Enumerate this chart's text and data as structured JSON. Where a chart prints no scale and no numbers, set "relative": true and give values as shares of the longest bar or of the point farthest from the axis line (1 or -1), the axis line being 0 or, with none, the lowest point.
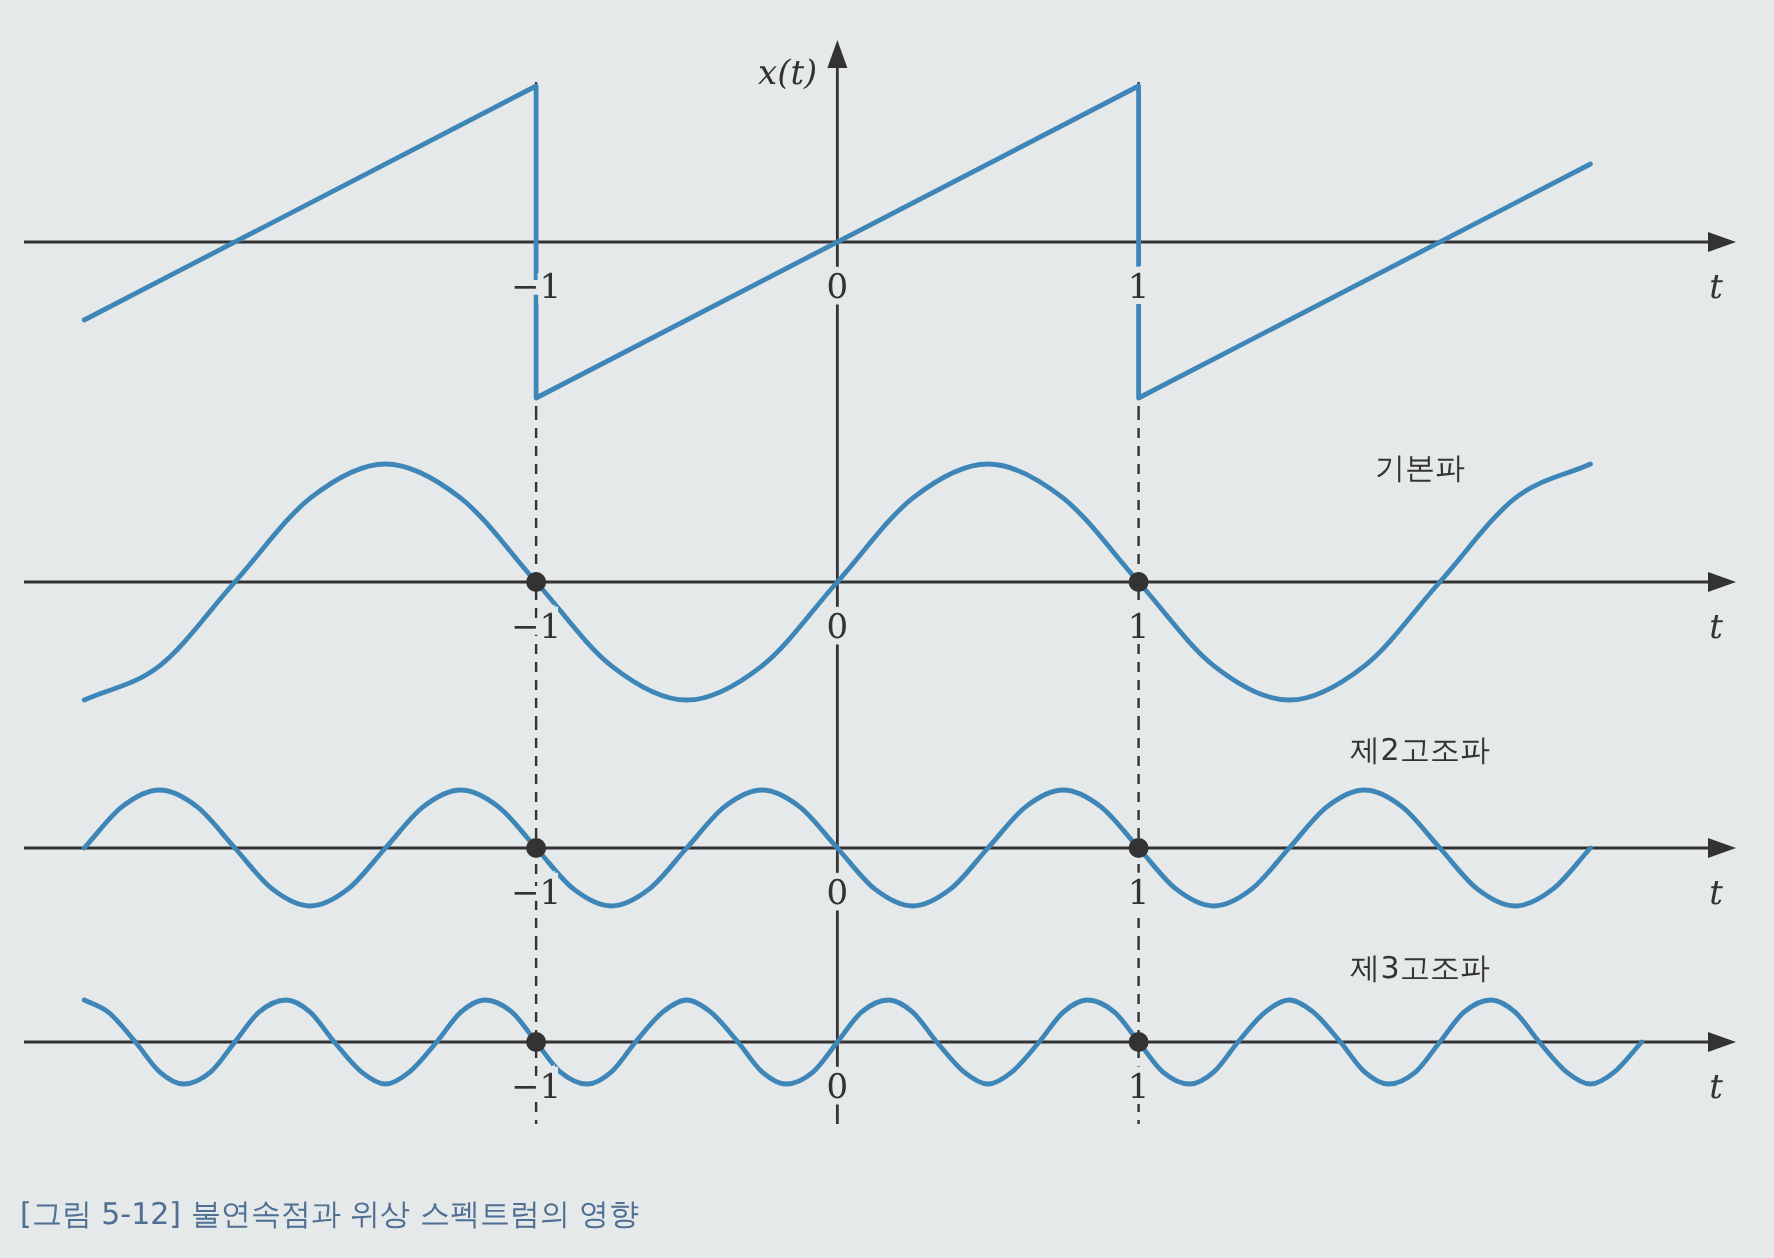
{
  "chart_data": [
    {
      "type": "line",
      "relative": true,
      "ylabel": "x(t)",
      "xlabel": "t",
      "xlim": [
        -2.7,
        2.93
      ],
      "xticks": [
        {
          "value": -1,
          "label": "−1"
        },
        {
          "value": 0,
          "label": "0"
        },
        {
          "value": 1,
          "label": "1"
        }
      ],
      "grid": false,
      "marker": "none",
      "line_style": "solid",
      "ref_lines": [
        {
          "axis": "x",
          "value": -1,
          "color": "#333333",
          "line_style": "dashed"
        },
        {
          "axis": "x",
          "value": 1,
          "color": "#333333",
          "line_style": "dashed"
        }
      ],
      "series": [
        {
          "type": "line",
          "color": "#3f86b8",
          "x": [
            -2.5,
            -1,
            -1,
            1,
            1,
            2.5
          ],
          "values": [
            -0.5,
            1,
            -1,
            1,
            -1,
            0.5
          ]
        }
      ]
    },
    {
      "type": "line",
      "relative": true,
      "title": "기본파",
      "xlabel": "t",
      "xlim": [
        -2.7,
        2.93
      ],
      "xticks": [
        {
          "value": -1,
          "label": "−1"
        },
        {
          "value": 0,
          "label": "0"
        },
        {
          "value": 1,
          "label": "1"
        }
      ],
      "grid": false,
      "marker": "none",
      "line_style": "solid",
      "ref_lines": [
        {
          "axis": "x",
          "value": -1,
          "color": "#333333",
          "line_style": "dashed"
        },
        {
          "axis": "x",
          "value": 1,
          "color": "#333333",
          "line_style": "dashed"
        }
      ],
      "series": [
        {
          "type": "line",
          "color": "#3f86b8",
          "x": [
            -2.5,
            -2.25,
            -2,
            -1.75,
            -1.5,
            -1.25,
            -1,
            -0.75,
            -0.5,
            -0.25,
            0,
            0.25,
            0.5,
            0.75,
            1,
            1.25,
            1.5,
            1.75,
            2,
            2.25,
            2.5
          ],
          "values": [
            -1,
            -0.71,
            0,
            0.71,
            1,
            0.71,
            0,
            -0.71,
            -1,
            -0.71,
            0,
            0.71,
            1,
            0.71,
            0,
            -0.71,
            -1,
            -0.71,
            0,
            0.71,
            1
          ]
        },
        {
          "type": "scatter",
          "marker": "circle",
          "color": "#333333",
          "x": [
            -1,
            1
          ],
          "values": [
            0,
            0
          ]
        }
      ]
    },
    {
      "type": "line",
      "relative": true,
      "title": "제2고조파",
      "xlabel": "t",
      "xlim": [
        -2.7,
        2.93
      ],
      "xticks": [
        {
          "value": -1,
          "label": "−1"
        },
        {
          "value": 0,
          "label": "0"
        },
        {
          "value": 1,
          "label": "1"
        }
      ],
      "grid": false,
      "marker": "none",
      "line_style": "solid",
      "ref_lines": [
        {
          "axis": "x",
          "value": -1,
          "color": "#333333",
          "line_style": "dashed"
        },
        {
          "axis": "x",
          "value": 1,
          "color": "#333333",
          "line_style": "dashed"
        }
      ],
      "series": [
        {
          "type": "line",
          "color": "#3f86b8",
          "x": [
            -2.5,
            -2.375,
            -2.25,
            -2.125,
            -2,
            -1.875,
            -1.75,
            -1.625,
            -1.5,
            -1.375,
            -1.25,
            -1.125,
            -1,
            -0.875,
            -0.75,
            -0.625,
            -0.5,
            -0.375,
            -0.25,
            -0.125,
            0,
            0.125,
            0.25,
            0.375,
            0.5,
            0.625,
            0.75,
            0.875,
            1,
            1.125,
            1.25,
            1.375,
            1.5,
            1.625,
            1.75,
            1.875,
            2,
            2.125,
            2.25,
            2.375,
            2.5
          ],
          "values": [
            0,
            0.71,
            1,
            0.71,
            0,
            -0.71,
            -1,
            -0.71,
            0,
            0.71,
            1,
            0.71,
            0,
            -0.71,
            -1,
            -0.71,
            0,
            0.71,
            1,
            0.71,
            0,
            -0.71,
            -1,
            -0.71,
            0,
            0.71,
            1,
            0.71,
            0,
            -0.71,
            -1,
            -0.71,
            0,
            0.71,
            1,
            0.71,
            0,
            -0.71,
            -1,
            -0.71,
            0
          ]
        },
        {
          "type": "scatter",
          "marker": "circle",
          "color": "#333333",
          "x": [
            -1,
            1
          ],
          "values": [
            0,
            0
          ]
        }
      ]
    },
    {
      "type": "line",
      "relative": true,
      "title": "제3고조파",
      "xlabel": "t",
      "xlim": [
        -2.7,
        2.93
      ],
      "xticks": [
        {
          "value": -1,
          "label": "−1"
        },
        {
          "value": 0,
          "label": "0"
        },
        {
          "value": 1,
          "label": "1"
        }
      ],
      "grid": false,
      "marker": "none",
      "line_style": "solid",
      "annotations": [
        "[그림 5-12] 불연속점과 위상 스펙트럼의 영향"
      ],
      "ref_lines": [
        {
          "axis": "x",
          "value": -1,
          "color": "#333333",
          "line_style": "dashed"
        },
        {
          "axis": "x",
          "value": 1,
          "color": "#333333",
          "line_style": "dashed"
        }
      ],
      "series": [
        {
          "type": "line",
          "color": "#3f86b8",
          "x": [
            -2.5,
            -2.42,
            -2.33,
            -2.25,
            -2.17,
            -2.08,
            -2,
            -1.92,
            -1.83,
            -1.75,
            -1.67,
            -1.58,
            -1.5,
            -1.42,
            -1.33,
            -1.25,
            -1.17,
            -1.08,
            -1,
            -0.92,
            -0.83,
            -0.75,
            -0.67,
            -0.58,
            -0.5,
            -0.42,
            -0.33,
            -0.25,
            -0.17,
            -0.08,
            0,
            0.08,
            0.17,
            0.25,
            0.33,
            0.42,
            0.5,
            0.58,
            0.67,
            0.75,
            0.83,
            0.92,
            1,
            1.08,
            1.17,
            1.25,
            1.33,
            1.42,
            1.5,
            1.58,
            1.67,
            1.75,
            1.83,
            1.92,
            2,
            2.08,
            2.17,
            2.25,
            2.33,
            2.42,
            2.5,
            2.58,
            2.67
          ],
          "values": [
            1,
            0.71,
            0,
            -0.71,
            -1,
            -0.71,
            0,
            0.71,
            1,
            0.71,
            0,
            -0.71,
            -1,
            -0.71,
            0,
            0.71,
            1,
            0.71,
            0,
            -0.71,
            -1,
            -0.71,
            0,
            0.71,
            1,
            0.71,
            0,
            -0.71,
            -1,
            -0.71,
            0,
            0.71,
            1,
            0.71,
            0,
            -0.71,
            -1,
            -0.71,
            0,
            0.71,
            1,
            0.71,
            0,
            -0.71,
            -1,
            -0.71,
            0,
            0.71,
            1,
            0.71,
            0,
            -0.71,
            -1,
            -0.71,
            0,
            0.71,
            1,
            0.71,
            0,
            -0.71,
            -1,
            -0.71,
            0
          ]
        },
        {
          "type": "scatter",
          "marker": "circle",
          "color": "#333333",
          "x": [
            -1,
            1
          ],
          "values": [
            0,
            0
          ]
        }
      ]
    }
  ]
}
